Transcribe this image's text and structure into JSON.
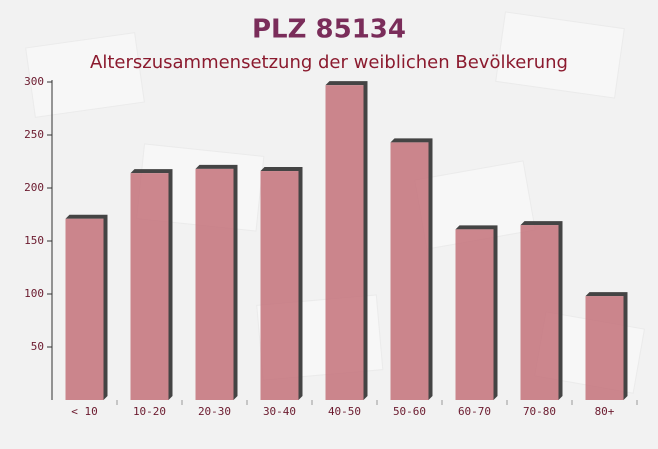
{
  "chart_data": {
    "type": "bar",
    "title": "PLZ 85134",
    "subtitle": "Alterszusammensetzung der weiblichen Bevölkerung",
    "categories": [
      "< 10",
      "10-20",
      "20-30",
      "30-40",
      "40-50",
      "50-60",
      "60-70",
      "70-80",
      "80+"
    ],
    "values": [
      171,
      214,
      218,
      216,
      297,
      243,
      161,
      165,
      98
    ],
    "color": "#c4727a",
    "ylim": [
      0,
      300
    ],
    "yticks": [
      50,
      100,
      150,
      200,
      250,
      300
    ]
  }
}
